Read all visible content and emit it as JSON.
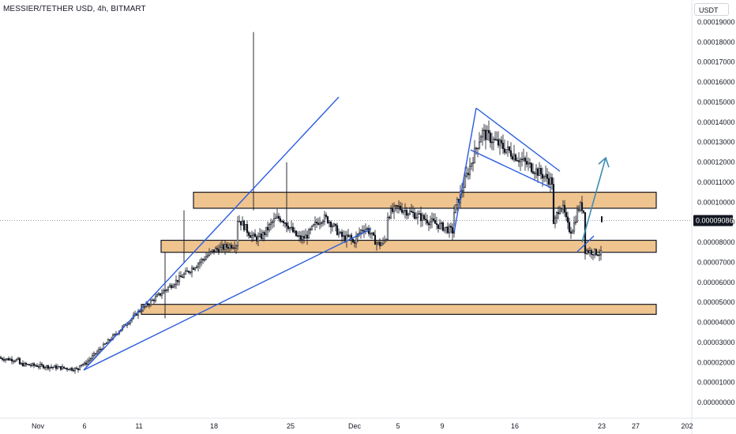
{
  "header": {
    "title": "MESSIER/TETHER USD, 4h, BITMART",
    "currency": "USDT"
  },
  "colors": {
    "candle": "#131722",
    "zone_fill": "#efc48f",
    "zone_stroke": "#131722",
    "trendline": "#2a5ce0",
    "arrow": "#3d8bb5",
    "last_price_bg": "#131722",
    "last_price_text": "#ffffff"
  },
  "chart_data": {
    "type": "candlestick",
    "title": "MESSIER/TETHER USD, 4h, BITMART",
    "currency": "USDT",
    "y_axis": {
      "ticks": [
        "0.00019000",
        "0.00018000",
        "0.00017000",
        "0.00016000",
        "0.00015000",
        "0.00014000",
        "0.00013000",
        "0.00012000",
        "0.00011000",
        "0.00010000",
        "0.00009000",
        "0.00008000",
        "0.00007000",
        "0.00006000",
        "0.00005000",
        "0.00004000",
        "0.00003000",
        "0.00002000",
        "0.00001000",
        "0.00000000"
      ],
      "ylim": [
        0,
        0.00019
      ]
    },
    "x_axis": {
      "ticks": [
        "Nov",
        "6",
        "11",
        "18",
        "25",
        "Dec",
        "5",
        "9",
        "16",
        "23",
        "27",
        "202"
      ]
    },
    "last_price": "0.00009086",
    "price_path": [
      [
        "Nov",
        2.25e-05
      ],
      [
        "6",
        1.9e-05
      ],
      [
        "11",
        4.55e-05
      ],
      [
        "18",
        7.6e-05
      ],
      [
        "25",
        8.7e-05
      ],
      [
        "Dec",
        8.1e-05
      ],
      [
        "5",
        9.75e-05
      ],
      [
        "9",
        8.55e-05
      ],
      [
        "16",
        0.000128
      ],
      [
        "23",
        7.5e-05
      ]
    ],
    "zones": [
      {
        "from": 9.7e-05,
        "to": 0.000105
      },
      {
        "from": 7.5e-05,
        "to": 8.1e-05
      },
      {
        "from": 4.4e-05,
        "to": 4.9e-05
      }
    ],
    "annotations": [
      "support/resistance zones",
      "trendlines",
      "projection arrow"
    ]
  }
}
